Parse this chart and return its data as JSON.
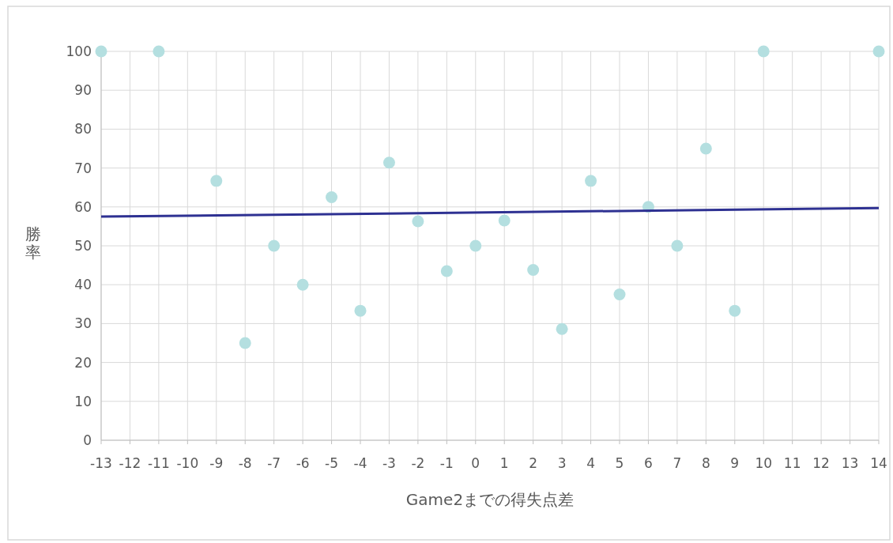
{
  "chart_data": {
    "type": "scatter",
    "xlabel": "Game2までの得失点差",
    "ylabel": "勝率",
    "xlim": [
      -13,
      14
    ],
    "xticks": [
      -13,
      -12,
      -11,
      -10,
      -9,
      -8,
      -7,
      -6,
      -5,
      -4,
      -3,
      -2,
      -1,
      0,
      1,
      2,
      3,
      4,
      5,
      6,
      7,
      8,
      9,
      10,
      11,
      12,
      13,
      14
    ],
    "ylim": [
      0,
      100
    ],
    "yticks": [
      0,
      10,
      20,
      30,
      40,
      50,
      60,
      70,
      80,
      90,
      100
    ],
    "grid": true,
    "series": [
      {
        "color": "#b4dfe0",
        "marker": "circle",
        "x": [
          -13,
          -11,
          -9,
          -8,
          -7,
          -6,
          -5,
          -4,
          -3,
          -2,
          -1,
          0,
          1,
          2,
          3,
          4,
          5,
          6,
          7,
          8,
          9,
          10,
          14
        ],
        "values": [
          100,
          100,
          66.7,
          25,
          50,
          40,
          62.5,
          33.3,
          71.4,
          56.3,
          43.5,
          50,
          56.5,
          43.8,
          28.6,
          66.7,
          37.5,
          60,
          50,
          75,
          33.3,
          100,
          100
        ]
      },
      {
        "type": "line",
        "color": "#2e3192",
        "marker": "none",
        "x": [
          -13,
          14
        ],
        "values": [
          57.5,
          59.7
        ]
      }
    ]
  }
}
